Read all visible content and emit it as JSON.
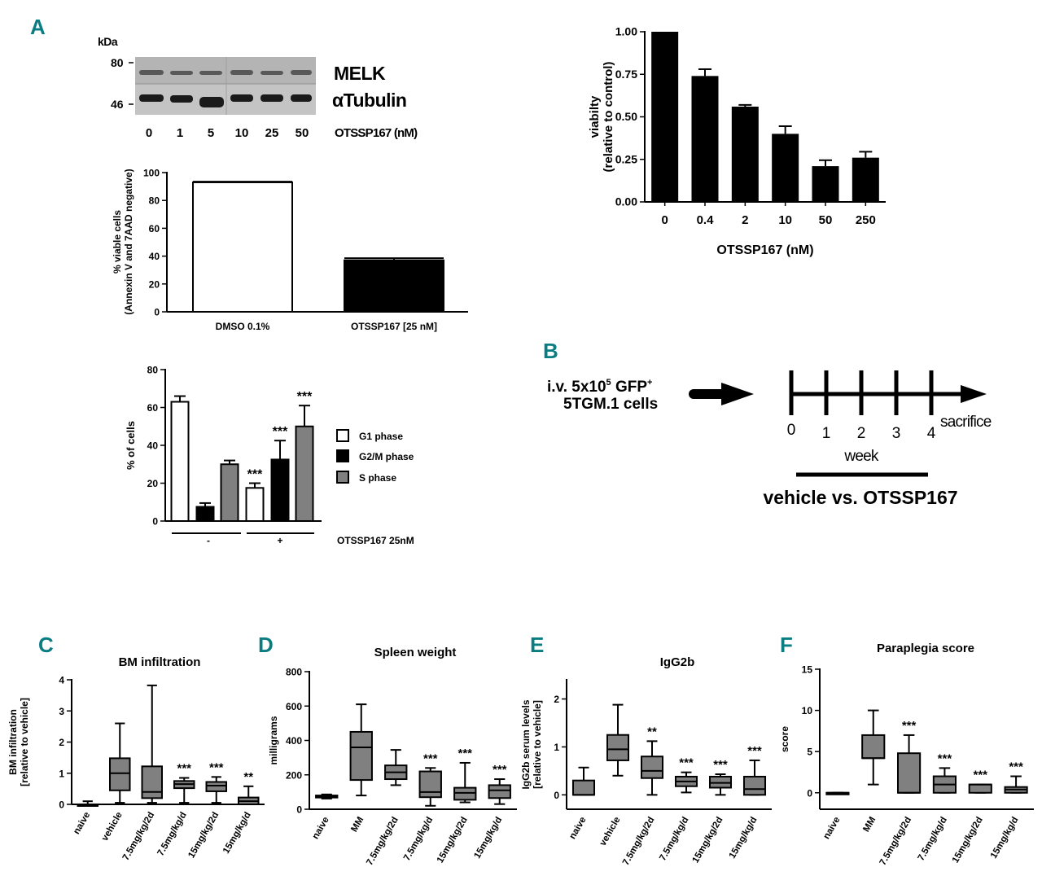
{
  "panel_letters": {
    "a": "A",
    "b": "B",
    "c": "C",
    "d": "D",
    "e": "E",
    "f": "F"
  },
  "western_blot": {
    "kda_label": "kDa",
    "markers": [
      "80",
      "46"
    ],
    "bands": [
      "MELK",
      "αTubulin"
    ],
    "lanes": [
      "0",
      "1",
      "5",
      "10",
      "25",
      "50"
    ],
    "lane_label": "OTSSP167 (nM)"
  },
  "timeline": {
    "injection_line1": "i.v. 5x10",
    "injection_sup": "5",
    "injection_gfp": " GFP",
    "injection_plus": "+",
    "injection_line2": "5TGM.1 cells",
    "weeks": [
      "0",
      "1",
      "2",
      "3",
      "4"
    ],
    "end_label": "sacrifice",
    "axis_label": "week",
    "treatment_label": "vehicle vs. OTSSP167"
  },
  "legend": {
    "entries": [
      {
        "label": "G1 phase",
        "color": "#ffffff"
      },
      {
        "label": "G2/M phase",
        "color": "#000000"
      },
      {
        "label": "S phase",
        "color": "#808080"
      }
    ]
  },
  "chart_data": [
    {
      "id": "viability",
      "type": "bar",
      "title": "",
      "xlabel": "OTSSP167 (nM)",
      "ylabel": "viabilty",
      "ylabel2": "(relative to control)",
      "categories": [
        "0",
        "0.4",
        "2",
        "10",
        "50",
        "250"
      ],
      "values": [
        1.0,
        0.74,
        0.56,
        0.4,
        0.21,
        0.26
      ],
      "errors": [
        0,
        0.04,
        0.01,
        0.045,
        0.035,
        0.035
      ],
      "ylim": [
        0,
        1.0
      ],
      "yticks": [
        "0.00",
        "0.25",
        "0.50",
        "0.75",
        "1.00"
      ],
      "color": "#000000"
    },
    {
      "id": "apoptosis",
      "type": "bar",
      "title": "",
      "ylabel": "% viable cells",
      "ylabel2": "(Annexin V and 7AAD negative)",
      "categories": [
        "DMSO 0.1%",
        "OTSSP167 [25 nM]"
      ],
      "values": [
        93,
        37
      ],
      "errors": [
        0.5,
        1.5
      ],
      "colors": [
        "#ffffff",
        "#000000"
      ],
      "ylim": [
        0,
        100
      ],
      "yticks": [
        "0",
        "20",
        "40",
        "60",
        "80",
        "100"
      ]
    },
    {
      "id": "cell_cycle",
      "type": "bar",
      "title": "",
      "ylabel": "% of cells",
      "groups": [
        "-",
        "+"
      ],
      "group_axis_label": "OTSSP167 25nM",
      "series": [
        {
          "name": "G1 phase",
          "values": [
            63,
            17.5
          ],
          "errors": [
            3,
            2.5
          ],
          "color": "#ffffff"
        },
        {
          "name": "G2/M phase",
          "values": [
            7.5,
            32.5
          ],
          "errors": [
            2,
            10
          ],
          "color": "#000000"
        },
        {
          "name": "S phase",
          "values": [
            30,
            50
          ],
          "errors": [
            2,
            11
          ],
          "color": "#808080"
        }
      ],
      "significance": [
        "",
        "",
        "",
        "***",
        "***",
        "***"
      ],
      "ylim": [
        0,
        80
      ],
      "yticks": [
        "0",
        "20",
        "40",
        "60",
        "80"
      ]
    },
    {
      "id": "bm_infiltration",
      "type": "box",
      "title": "BM infiltration",
      "ylabel": "BM infiltration",
      "ylabel2": "[relative to vehicle]",
      "categories": [
        "naive",
        "vehicle",
        "7.5mg/kg/2d",
        "7.5mg/kg/d",
        "15mg/kg/2d",
        "15mg/kg/d"
      ],
      "boxes": [
        {
          "min": -0.05,
          "q1": -0.05,
          "median": 0.0,
          "q3": 0.0,
          "max": 0.1
        },
        {
          "min": 0.05,
          "q1": 0.45,
          "median": 1.0,
          "q3": 1.48,
          "max": 2.6
        },
        {
          "min": 0.05,
          "q1": 0.2,
          "median": 0.4,
          "q3": 1.22,
          "max": 3.82
        },
        {
          "min": 0.05,
          "q1": 0.52,
          "median": 0.65,
          "q3": 0.75,
          "max": 0.85
        },
        {
          "min": 0.05,
          "q1": 0.42,
          "median": 0.6,
          "q3": 0.72,
          "max": 0.88
        },
        {
          "min": 0.0,
          "q1": 0.0,
          "median": 0.1,
          "q3": 0.22,
          "max": 0.58
        }
      ],
      "significance": [
        "",
        "",
        "",
        "***",
        "***",
        "**"
      ],
      "ylim": [
        0,
        4
      ],
      "yticks": [
        "0",
        "1",
        "2",
        "3",
        "4"
      ]
    },
    {
      "id": "spleen_weight",
      "type": "box",
      "title": "Spleen weight",
      "ylabel": "milligrams",
      "categories": [
        "naive",
        "MM",
        "7.5mg/kg/2d",
        "7.5mg/kg/d",
        "15mg/kg/2d",
        "15mg/kg/d"
      ],
      "boxes": [
        {
          "min": 62,
          "q1": 68,
          "median": 74,
          "q3": 80,
          "max": 86
        },
        {
          "min": 80,
          "q1": 170,
          "median": 360,
          "q3": 450,
          "max": 610
        },
        {
          "min": 140,
          "q1": 175,
          "median": 215,
          "q3": 255,
          "max": 345
        },
        {
          "min": 20,
          "q1": 70,
          "median": 100,
          "q3": 220,
          "max": 240
        },
        {
          "min": 40,
          "q1": 55,
          "median": 95,
          "q3": 125,
          "max": 270
        },
        {
          "min": 30,
          "q1": 65,
          "median": 110,
          "q3": 140,
          "max": 175
        }
      ],
      "significance": [
        "",
        "",
        "",
        "***",
        "***",
        "***"
      ],
      "ylim": [
        0,
        800
      ],
      "yticks": [
        "0",
        "200",
        "400",
        "600",
        "800"
      ]
    },
    {
      "id": "igg2b",
      "type": "box",
      "title": "IgG2b",
      "ylabel": "IgG2b serum levels",
      "ylabel2": "[relative to vehicle]",
      "categories": [
        "naive",
        "vehicle",
        "7.5mg/kg/2d",
        "7.5mg/kg/d",
        "15mg/kg/2d",
        "15mg/kg/d"
      ],
      "boxes": [
        {
          "min": 0.0,
          "q1": 0.0,
          "median": 0.0,
          "q3": 0.3,
          "max": 0.57
        },
        {
          "min": 0.4,
          "q1": 0.72,
          "median": 0.95,
          "q3": 1.25,
          "max": 1.88
        },
        {
          "min": 0.0,
          "q1": 0.35,
          "median": 0.5,
          "q3": 0.8,
          "max": 1.12
        },
        {
          "min": 0.05,
          "q1": 0.18,
          "median": 0.28,
          "q3": 0.38,
          "max": 0.47
        },
        {
          "min": 0.0,
          "q1": 0.15,
          "median": 0.25,
          "q3": 0.38,
          "max": 0.43
        },
        {
          "min": 0.0,
          "q1": 0.0,
          "median": 0.12,
          "q3": 0.38,
          "max": 0.72
        }
      ],
      "significance": [
        "",
        "",
        "**",
        "***",
        "***",
        "***"
      ],
      "ylim": [
        -0.3,
        2.4
      ],
      "yticks": [
        "0",
        "1",
        "2"
      ],
      "ytick_values": [
        0,
        1,
        2
      ]
    },
    {
      "id": "paraplegia",
      "type": "box",
      "title": "Paraplegia score",
      "ylabel": "score",
      "categories": [
        "naive",
        "MM",
        "7.5mg/kg/2d",
        "7.5mg/kg/d",
        "15mg/kg/2d",
        "15mg/kg/d"
      ],
      "boxes": [
        {
          "min": 0,
          "q1": 0,
          "median": 0,
          "q3": 0,
          "max": 0
        },
        {
          "min": 1,
          "q1": 4.2,
          "median": 4.2,
          "q3": 7,
          "max": 10
        },
        {
          "min": 0,
          "q1": 0,
          "median": 0,
          "q3": 4.8,
          "max": 7
        },
        {
          "min": 0,
          "q1": 0,
          "median": 1,
          "q3": 2,
          "max": 3
        },
        {
          "min": 0,
          "q1": 0,
          "median": 1,
          "q3": 1,
          "max": 1
        },
        {
          "min": 0,
          "q1": 0,
          "median": 0.4,
          "q3": 0.7,
          "max": 2
        }
      ],
      "significance": [
        "",
        "",
        "***",
        "***",
        "***",
        "***"
      ],
      "ylim": [
        -2,
        15
      ],
      "yticks": [
        "0",
        "5",
        "10",
        "15"
      ],
      "ytick_values": [
        0,
        5,
        10,
        15
      ]
    }
  ]
}
